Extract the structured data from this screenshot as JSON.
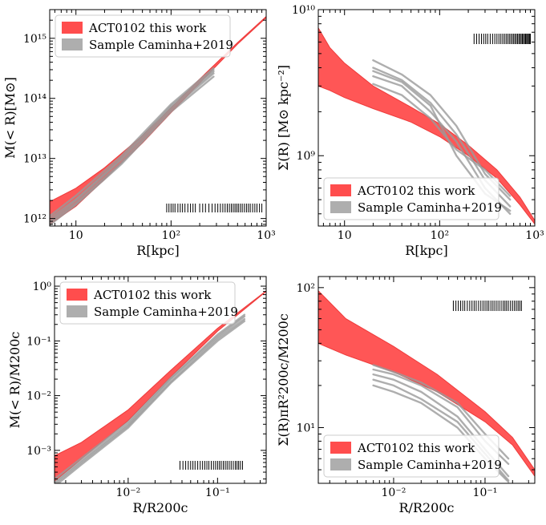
{
  "legend_labels": [
    "ACT0102 this work",
    "Sample Caminha+2019"
  ],
  "colors": {
    "act_band": "#ff4d4d",
    "act_line": "#ee3b3b",
    "sample": "#9a9a9a",
    "axes": "#000000",
    "ticks": "#000000"
  },
  "chart_data": [
    {
      "type": "line",
      "id": "mass-vs-radius",
      "xlabel": "R[kpc]",
      "ylabel": "M(< R)[M⊙]",
      "xscale": "log",
      "yscale": "log",
      "xlim": [
        5.3,
        1000
      ],
      "ylim": [
        750000000000.0,
        3000000000000000.0
      ],
      "xticks": [
        10,
        100,
        1000
      ],
      "xtick_labels": [
        "10",
        "10²",
        "10³"
      ],
      "yticks": [
        1000000000000.0,
        10000000000000.0,
        100000000000000.0,
        1000000000000000.0
      ],
      "ytick_labels": [
        "10¹²",
        "10¹³",
        "10¹⁴",
        "10¹⁵"
      ],
      "legend_position": "upper-left",
      "series": [
        {
          "name": "ACT0102 this work",
          "kind": "band",
          "x": [
            5.3,
            10,
            20,
            50,
            100,
            200,
            500,
            1000
          ],
          "y_low": [
            800000000000.0,
            1600000000000.0,
            4500000000000.0,
            18000000000000.0,
            58000000000000.0,
            180000000000000.0,
            800000000000000.0,
            2200000000000000.0
          ],
          "y_high": [
            1900000000000.0,
            3200000000000.0,
            7000000000000.0,
            24000000000000.0,
            70000000000000.0,
            210000000000000.0,
            850000000000000.0,
            2300000000000000.0
          ]
        },
        {
          "name": "Sample Caminha+2019",
          "kind": "lines",
          "x": [
            5.3,
            10,
            30,
            100,
            280
          ],
          "lines": [
            [
              1000000000000.0,
              2100000000000.0,
              10000000000000.0,
              75000000000000.0,
              300000000000000.0
            ],
            [
              850000000000.0,
              1800000000000.0,
              8500000000000.0,
              65000000000000.0,
              260000000000000.0
            ],
            [
              1100000000000.0,
              2400000000000.0,
              11000000000000.0,
              80000000000000.0,
              320000000000000.0
            ],
            [
              900000000000.0,
              2000000000000.0,
              9500000000000.0,
              70000000000000.0,
              280000000000000.0
            ],
            [
              780000000000.0,
              1700000000000.0,
              8000000000000.0,
              60000000000000.0,
              230000000000000.0
            ]
          ]
        }
      ],
      "rug": {
        "x": [
          90,
          95,
          100,
          105,
          110,
          118,
          125,
          132,
          140,
          150,
          160,
          170,
          180,
          200,
          215,
          230,
          250,
          270,
          290,
          310,
          330,
          350,
          370,
          390,
          410,
          430,
          450,
          470,
          490,
          510,
          535,
          560,
          590,
          620,
          650,
          680,
          720,
          760,
          800,
          850,
          900
        ]
      }
    },
    {
      "type": "line",
      "id": "surface-density-vs-radius",
      "xlabel": "R[kpc]",
      "ylabel": "Σ(R) [M⊙ kpc⁻²]",
      "xscale": "log",
      "yscale": "log",
      "xlim": [
        5.3,
        1000
      ],
      "ylim": [
        330000000.0,
        10000000000.0
      ],
      "xticks": [
        10,
        100,
        1000
      ],
      "xtick_labels": [
        "10",
        "10²",
        "10³"
      ],
      "yticks": [
        1000000000.0,
        10000000000.0
      ],
      "ytick_labels": [
        "10⁹",
        "10¹⁰"
      ],
      "legend_position": "lower-left",
      "series": [
        {
          "name": "ACT0102 this work",
          "kind": "band",
          "x": [
            5.3,
            7,
            10,
            20,
            50,
            100,
            200,
            400,
            700,
            1000
          ],
          "y_low": [
            3000000000.0,
            2800000000.0,
            2500000000.0,
            2100000000.0,
            1700000000.0,
            1350000000.0,
            1000000000.0,
            700000000.0,
            460000000.0,
            340000000.0
          ],
          "y_high": [
            7500000000.0,
            5500000000.0,
            4300000000.0,
            3000000000.0,
            2150000000.0,
            1650000000.0,
            1180000000.0,
            800000000.0,
            520000000.0,
            360000000.0
          ]
        },
        {
          "name": "Sample Caminha+2019",
          "kind": "lines",
          "x": [
            20,
            40,
            80,
            150,
            300,
            550
          ],
          "lines": [
            [
              4500000000.0,
              3600000000.0,
              2600000000.0,
              1600000000.0,
              750000000.0,
              500000000.0
            ],
            [
              4000000000.0,
              3300000000.0,
              2300000000.0,
              1400000000.0,
              680000000.0,
              450000000.0
            ],
            [
              3500000000.0,
              3000000000.0,
              2000000000.0,
              1250000000.0,
              600000000.0,
              400000000.0
            ],
            [
              3100000000.0,
              2600000000.0,
              1800000000.0,
              1100000000.0,
              800000000.0,
              530000000.0
            ],
            [
              3800000000.0,
              3200000000.0,
              2200000000.0,
              1000000000.0,
              550000000.0,
              420000000.0
            ]
          ]
        }
      ],
      "rug": {
        "x": [
          230,
          245,
          260,
          275,
          290,
          305,
          320,
          340,
          360,
          380,
          400,
          420,
          440,
          460,
          480,
          500,
          520,
          540,
          560,
          580,
          600,
          620,
          640,
          660,
          680,
          700,
          720,
          740,
          760,
          780,
          800,
          820,
          840,
          860,
          880,
          900
        ]
      }
    },
    {
      "type": "line",
      "id": "normalized-mass",
      "xlabel": "R/R200c",
      "ylabel": "M(< R)/M200c",
      "xscale": "log",
      "yscale": "log",
      "xlim": [
        0.0015,
        0.35
      ],
      "ylim": [
        0.00025,
        1.5
      ],
      "xticks": [
        0.01,
        0.1
      ],
      "xtick_labels": [
        "10⁻²",
        "10⁻¹"
      ],
      "yticks": [
        0.001,
        0.01,
        0.1,
        1
      ],
      "ytick_labels": [
        "10⁻³",
        "10⁻²",
        "10⁻¹",
        "10⁰"
      ],
      "legend_position": "upper-left",
      "series": [
        {
          "name": "ACT0102 this work",
          "kind": "band",
          "x": [
            0.0015,
            0.003,
            0.01,
            0.03,
            0.1,
            0.35
          ],
          "y_low": [
            0.00027,
            0.0007,
            0.0035,
            0.022,
            0.15,
            0.8
          ],
          "y_high": [
            0.0008,
            0.0014,
            0.0055,
            0.029,
            0.17,
            0.82
          ]
        },
        {
          "name": "Sample Caminha+2019",
          "kind": "lines",
          "x": [
            0.0015,
            0.003,
            0.01,
            0.03,
            0.1,
            0.2
          ],
          "lines": [
            [
              0.00026,
              0.00065,
              0.003,
              0.02,
              0.12,
              0.28
            ],
            [
              0.00024,
              0.0006,
              0.0028,
              0.018,
              0.11,
              0.25
            ],
            [
              0.0003,
              0.00072,
              0.0033,
              0.021,
              0.13,
              0.3
            ],
            [
              0.00022,
              0.00055,
              0.0026,
              0.017,
              0.1,
              0.23
            ]
          ]
        }
      ],
      "rug": {
        "x": [
          0.038,
          0.041,
          0.044,
          0.047,
          0.05,
          0.053,
          0.056,
          0.06,
          0.064,
          0.068,
          0.072,
          0.076,
          0.08,
          0.085,
          0.09,
          0.095,
          0.1,
          0.105,
          0.11,
          0.116,
          0.122,
          0.128,
          0.135,
          0.142,
          0.15,
          0.158,
          0.165,
          0.172,
          0.18,
          0.19
        ]
      }
    },
    {
      "type": "line",
      "id": "normalized-surface-density",
      "xlabel": "R/R200c",
      "ylabel": "Σ(R)πR²200c/M200c",
      "xscale": "log",
      "yscale": "log",
      "xlim": [
        0.0015,
        0.35
      ],
      "ylim": [
        4,
        120
      ],
      "xticks": [
        0.01,
        0.1
      ],
      "xtick_labels": [
        "10⁻²",
        "10⁻¹"
      ],
      "yticks": [
        10,
        100
      ],
      "ytick_labels": [
        "10¹",
        "10²"
      ],
      "legend_position": "lower-left",
      "series": [
        {
          "name": "ACT0102 this work",
          "kind": "band",
          "x": [
            0.0015,
            0.003,
            0.01,
            0.03,
            0.1,
            0.2,
            0.35
          ],
          "y_low": [
            40,
            33,
            25,
            18,
            11,
            7.5,
            4.5
          ],
          "y_high": [
            95,
            60,
            38,
            24,
            13,
            8.5,
            5.0
          ]
        },
        {
          "name": "Sample Caminha+2019",
          "kind": "lines",
          "x": [
            0.006,
            0.01,
            0.02,
            0.05,
            0.1,
            0.18
          ],
          "lines": [
            [
              24,
              22,
              18,
              12,
              7,
              4.5
            ],
            [
              26,
              24,
              20,
              14,
              8,
              5.5
            ],
            [
              22,
              20,
              16,
              11,
              6.5,
              4.2
            ],
            [
              28,
              25,
              21,
              15,
              9,
              6
            ],
            [
              20,
              18,
              15,
              10,
              6,
              4.1
            ]
          ]
        }
      ],
      "rug": {
        "x": [
          0.045,
          0.048,
          0.051,
          0.054,
          0.057,
          0.06,
          0.064,
          0.068,
          0.072,
          0.076,
          0.08,
          0.085,
          0.09,
          0.095,
          0.1,
          0.105,
          0.11,
          0.116,
          0.122,
          0.128,
          0.135,
          0.142,
          0.15,
          0.158,
          0.165,
          0.172,
          0.18,
          0.19,
          0.2,
          0.21,
          0.22,
          0.23,
          0.24,
          0.25
        ]
      }
    }
  ]
}
